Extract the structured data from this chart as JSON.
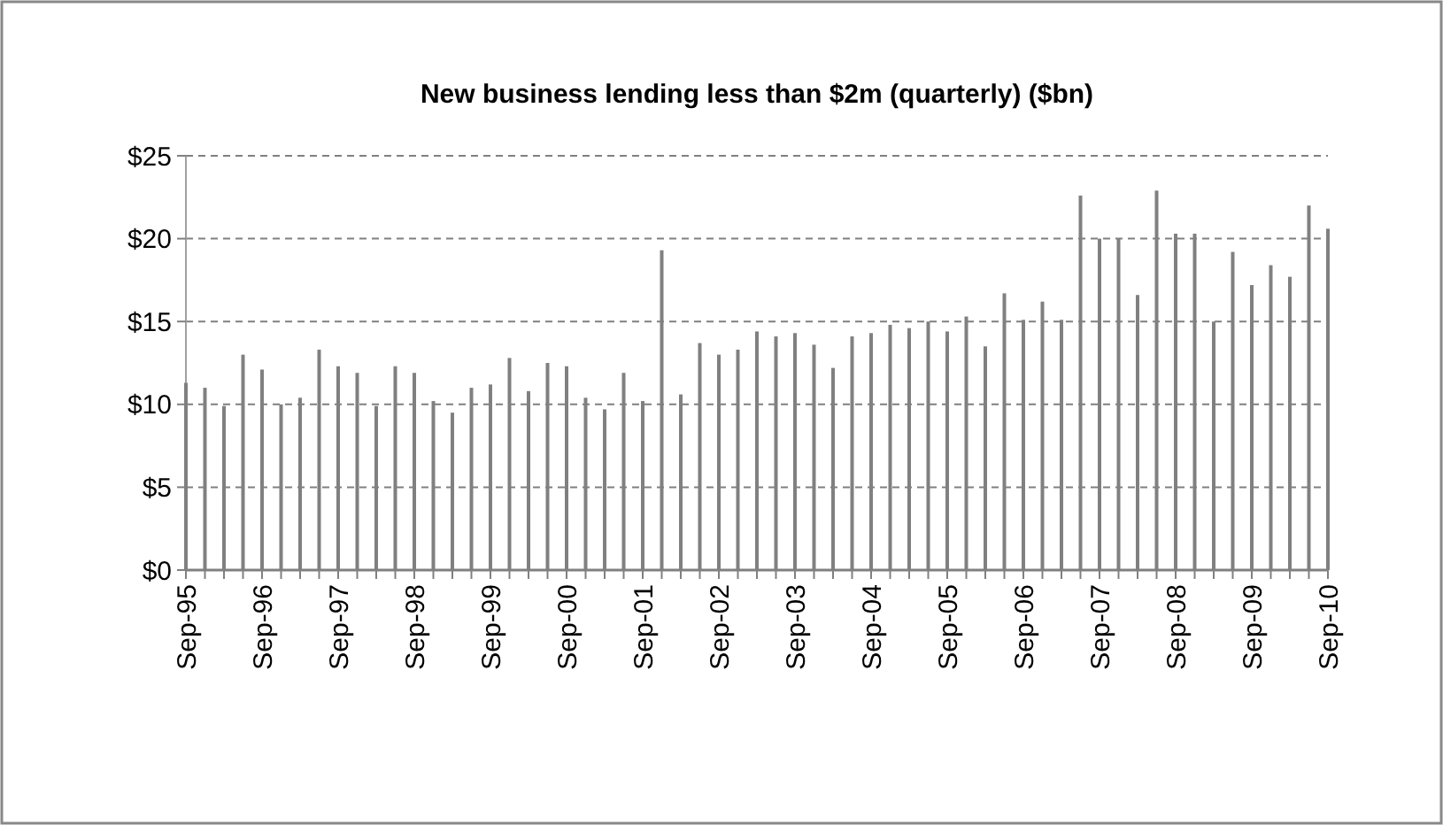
{
  "chart_data": {
    "type": "bar",
    "title": "New business lending  less than $2m (quarterly) ($bn)",
    "categories": [
      "Sep-95",
      null,
      null,
      null,
      "Sep-96",
      null,
      null,
      null,
      "Sep-97",
      null,
      null,
      null,
      "Sep-98",
      null,
      null,
      null,
      "Sep-99",
      null,
      null,
      null,
      "Sep-00",
      null,
      null,
      null,
      "Sep-01",
      null,
      null,
      null,
      "Sep-02",
      null,
      null,
      null,
      "Sep-03",
      null,
      null,
      null,
      "Sep-04",
      null,
      null,
      null,
      "Sep-05",
      null,
      null,
      null,
      "Sep-06",
      null,
      null,
      null,
      "Sep-07",
      null,
      null,
      null,
      "Sep-08",
      null,
      null,
      null,
      "Sep-09",
      null,
      null,
      null,
      "Sep-10"
    ],
    "values": [
      11.3,
      11.0,
      9.9,
      13.0,
      12.1,
      10.0,
      10.4,
      13.3,
      12.3,
      11.9,
      9.9,
      12.3,
      11.9,
      10.2,
      9.5,
      11.0,
      11.2,
      12.8,
      10.8,
      12.5,
      12.3,
      10.4,
      9.7,
      11.9,
      10.2,
      19.3,
      10.6,
      13.7,
      13.0,
      13.3,
      14.4,
      14.1,
      14.3,
      13.6,
      12.2,
      14.1,
      14.3,
      14.8,
      14.6,
      15.0,
      14.4,
      15.3,
      13.5,
      16.7,
      15.1,
      16.2,
      15.1,
      22.6,
      20.0,
      20.0,
      16.6,
      22.9,
      20.3,
      20.3,
      15.0,
      19.2,
      17.2,
      18.4,
      17.7,
      22.0,
      20.6
    ],
    "color": "#808080",
    "ylim": [
      0,
      25
    ],
    "yticks": [
      {
        "value": 0,
        "label": "$0"
      },
      {
        "value": 5,
        "label": "$5"
      },
      {
        "value": 10,
        "label": "$10"
      },
      {
        "value": 15,
        "label": "$15"
      },
      {
        "value": 20,
        "label": "$20"
      },
      {
        "value": 25,
        "label": "$25"
      }
    ],
    "grid": "y"
  }
}
